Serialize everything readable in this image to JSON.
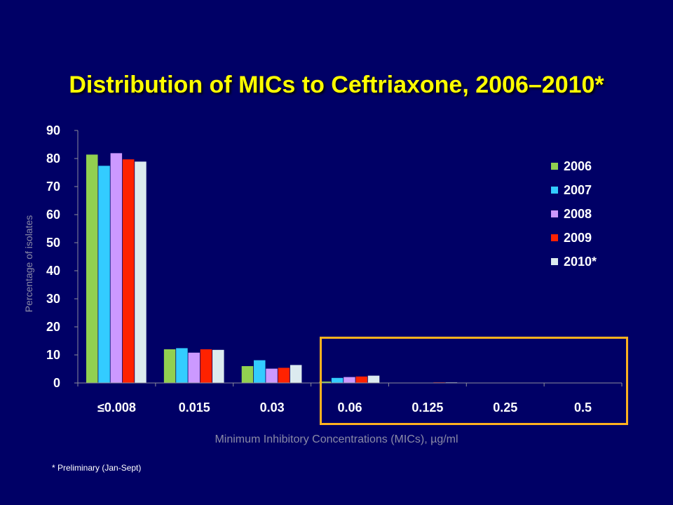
{
  "slide": {
    "title": "Distribution of MICs to Ceftriaxone, 2006–2010*",
    "footnote": "* Preliminary (Jan-Sept)"
  },
  "chart_data": {
    "type": "bar",
    "title": "Distribution of MICs to Ceftriaxone, 2006–2010*",
    "xlabel": "Minimum Inhibitory Concentrations (MICs),  µg/ml",
    "ylabel": "Percentage of isolates",
    "ylim": [
      0,
      90
    ],
    "yticks": [
      0,
      10,
      20,
      30,
      40,
      50,
      60,
      70,
      80,
      90
    ],
    "categories": [
      "≤0.008",
      "0.015",
      "0.03",
      "0.06",
      "0.125",
      "0.25",
      "0.5"
    ],
    "series": [
      {
        "name": "2006",
        "color": "#92d050",
        "values": [
          81.4,
          12.0,
          6.0,
          0.5,
          0.0,
          0.0,
          0.0
        ]
      },
      {
        "name": "2007",
        "color": "#33ccff",
        "values": [
          77.4,
          12.4,
          8.1,
          1.8,
          0.0,
          0.0,
          0.0
        ]
      },
      {
        "name": "2008",
        "color": "#cc99ff",
        "values": [
          81.9,
          10.8,
          5.1,
          2.1,
          0.0,
          0.0,
          0.0
        ]
      },
      {
        "name": "2009",
        "color": "#ff2200",
        "values": [
          79.7,
          12.0,
          5.4,
          2.3,
          0.2,
          0.0,
          0.0
        ]
      },
      {
        "name": "2010*",
        "color": "#dcebef",
        "values": [
          78.9,
          11.8,
          6.4,
          2.6,
          0.2,
          0.0,
          0.0
        ]
      }
    ],
    "grid": false,
    "legend_position": "right",
    "highlight": {
      "label": "highlighted region",
      "categories": [
        "0.06",
        "0.125",
        "0.25",
        "0.5"
      ],
      "color": "#ffb21f"
    }
  }
}
